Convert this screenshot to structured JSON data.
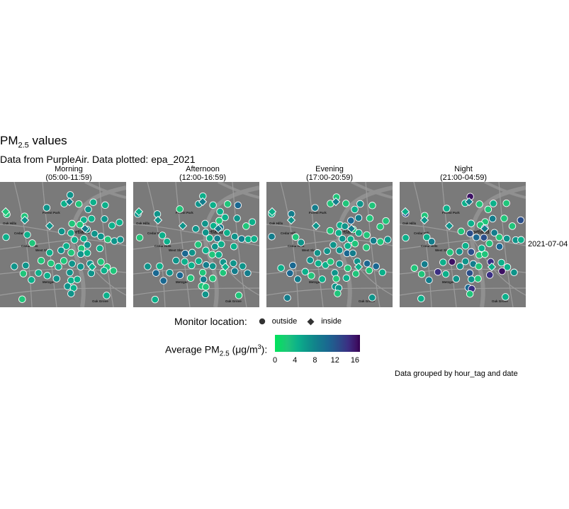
{
  "title": {
    "prefix": "PM",
    "subscript": "2.5",
    "suffix": " values"
  },
  "subtitle": "Data from PurpleAir. Data plotted: epa_2021",
  "strip_label": "2021-07-04",
  "caption": "Data grouped by hour_tag and date",
  "panels": [
    {
      "name": "Morning",
      "range": "(05:00-11:59)"
    },
    {
      "name": "Afternoon",
      "range": "(12:00-16:59)"
    },
    {
      "name": "Evening",
      "range": "(17:00-20:59)"
    },
    {
      "name": "Night",
      "range": "(21:00-04:59)"
    }
  ],
  "map_labels": [
    "Forest Park",
    "Oak Hills",
    "Cedar Mill",
    "Cedar Hills",
    "West Slope",
    "Portland",
    "Metzger",
    "Oak Grove"
  ],
  "legend_shape": {
    "title": "Monitor location:",
    "keys": [
      {
        "label": "outside",
        "shape": "circle"
      },
      {
        "label": "inside",
        "shape": "diamond"
      }
    ]
  },
  "legend_color": {
    "title_prefix": "Average PM",
    "title_subscript": "2.5",
    "title_unit_open": " (μg/m",
    "title_unit_sup": "3",
    "title_unit_close": "):",
    "min": 0,
    "max": 17,
    "ticks": [
      "0",
      "4",
      "8",
      "12",
      "16"
    ],
    "tick_values": [
      0,
      4,
      8,
      12,
      16
    ],
    "colors": [
      "#00e35b",
      "#1fc57a",
      "#0bb08a",
      "#0e948a",
      "#137d8c",
      "#1a6891",
      "#2a4e8a",
      "#3b2f83",
      "#3d1063",
      "#32004f"
    ]
  },
  "map_colors": {
    "land": "#7a7a7a",
    "road": "#9c9c9c",
    "water": "#909090",
    "point_outline": "#ffffff"
  }
}
